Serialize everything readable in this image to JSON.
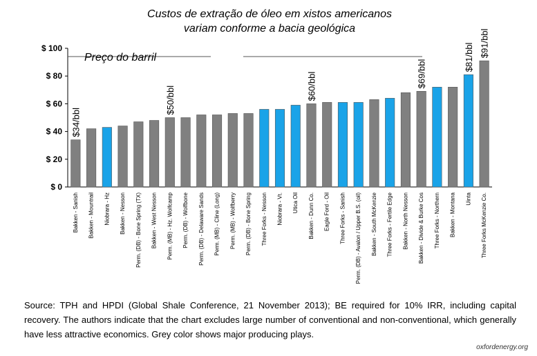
{
  "chart_data": {
    "type": "bar",
    "title_lines": [
      "Custos de extração de óleo em xistos americanos",
      "variam conforme a bacia geológica"
    ],
    "ylim": [
      0,
      100
    ],
    "yticks": [
      0,
      20,
      40,
      60,
      80,
      100
    ],
    "ytick_labels": [
      "$ 0",
      "$ 20",
      "$ 40",
      "$ 60",
      "$ 80",
      "$ 100"
    ],
    "grid": false,
    "reference_line": {
      "label": "Preço do barril",
      "value": 94
    },
    "categories": [
      "Bakken - Sanish",
      "Bakken - Mountrail",
      "Niobrara - Hz",
      "Bakken - Nesson",
      "Perm. (DB) - Bone Spring (TX)",
      "Bakken - West Nesson",
      "Perm. (MB) - Hz. Wolfcamp",
      "Perm. (DB) - Wolfbone",
      "Perm. (DB) - Delaware Sands",
      "Perm. (MB) - Cline (Long)",
      "Perm. (MB) - Wolfberry",
      "Perm. (DB) - Bone Spring",
      "Three Forks - Nesson",
      "Niobrara - Vt.",
      "Utica Oil",
      "Bakken - Dunn Co.",
      "Eagle Ford - Oil",
      "Three Forks - Sanish",
      "Perm. (DB) - Avalon / Upper B.S. (oil)",
      "Bakken - South McKenzie",
      "Three Forks - Fertile Edge",
      "Bakken - North Nesson",
      "Bakken - Divide & Burke Cos",
      "Three Forks - Northern",
      "Bakken - Montana",
      "Uinta",
      "Three Forks McKenzie Co."
    ],
    "values": [
      34,
      42,
      43,
      44,
      47,
      48,
      50,
      50,
      52,
      52,
      53,
      53,
      56,
      56,
      59,
      60,
      61,
      61,
      61,
      63,
      64,
      68,
      69,
      72,
      72,
      81,
      91
    ],
    "colors": [
      "grey",
      "grey",
      "blue",
      "grey",
      "grey",
      "grey",
      "grey",
      "grey",
      "grey",
      "grey",
      "grey",
      "grey",
      "blue",
      "blue",
      "blue",
      "grey",
      "grey",
      "blue",
      "blue",
      "grey",
      "blue",
      "grey",
      "grey",
      "blue",
      "grey",
      "blue",
      "grey"
    ],
    "palette": {
      "grey": "#808080",
      "blue": "#1aa3e8"
    },
    "data_labels": [
      {
        "index": 0,
        "text": "$34/bbl"
      },
      {
        "index": 6,
        "text": "$50/bbl"
      },
      {
        "index": 15,
        "text": "$60/bbl"
      },
      {
        "index": 22,
        "text": "$69/bbl"
      },
      {
        "index": 25,
        "text": "$81/bbl"
      },
      {
        "index": 26,
        "text": "$91/bbl"
      }
    ]
  },
  "source_note": "Source: TPH and HPDI (Global Shale Conference, 21 November 2013); BE required for 10% IRR, including capital recovery. The authors indicate that the chart excludes large number of conventional and non-conventional, which generally have less attractive economics. Grey color shows major producing plays.",
  "credit": "oxfordenergy.org"
}
